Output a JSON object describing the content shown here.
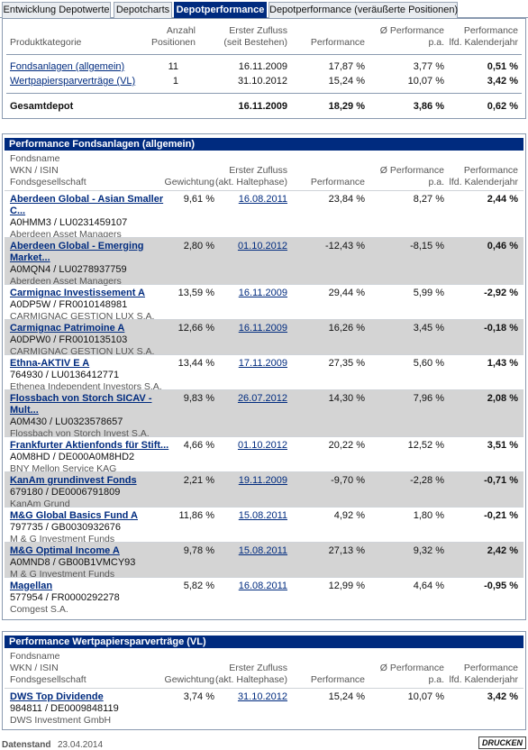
{
  "tabs": [
    {
      "label": "Entwicklung Depotwerte",
      "active": false
    },
    {
      "label": "Depotcharts",
      "active": false
    },
    {
      "label": "Depotperformance",
      "active": true
    },
    {
      "label": "Depotperformance (veräußerte Positionen)",
      "active": false
    }
  ],
  "summary": {
    "headers": {
      "category": "Produktkategorie",
      "count_1": "Anzahl",
      "count_2": "Positionen",
      "first_1": "Erster Zufluss",
      "first_2": "(seit Bestehen)",
      "perf": "Performance",
      "pa_1": "Ø Performance",
      "pa_2": "p.a.",
      "year_1": "Performance",
      "year_2": "lfd. Kalenderjahr"
    },
    "rows": [
      {
        "category": "Fondsanlagen (allgemein)",
        "count": "11",
        "first": "16.11.2009",
        "perf": "17,87 %",
        "pa": "3,77 %",
        "year": "0,51 %"
      },
      {
        "category": "Wertpapiersparverträge (VL)",
        "count": "1",
        "first": "31.10.2012",
        "perf": "15,24 %",
        "pa": "10,07 %",
        "year": "3,42 %"
      }
    ],
    "total": {
      "category": "Gesamtdepot",
      "first": "16.11.2009",
      "perf": "18,29 %",
      "pa": "3,86 %",
      "year": "0,62 %"
    }
  },
  "funds_section": {
    "title": "Performance Fondsanlagen (allgemein)",
    "headers": {
      "name_1": "Fondsname",
      "name_2": "WKN / ISIN",
      "name_3": "Fondsgesellschaft",
      "weight": "Gewichtung",
      "first_1": "Erster Zufluss",
      "first_2": "(akt. Haltephase)",
      "perf": "Performance",
      "pa_1": "Ø Performance",
      "pa_2": "p.a.",
      "year_1": "Performance",
      "year_2": "lfd. Kalenderjahr"
    },
    "rows": [
      {
        "name": "Aberdeen Global - Asian Smaller",
        "name2": "C...",
        "ids": "A0HMM3 /  LU0231459107",
        "company": "Aberdeen Asset Managers",
        "weight": "9,61 %",
        "first": "16.08.2011",
        "perf": "23,84 %",
        "pa": "8,27 %",
        "year": "2,44 %"
      },
      {
        "name": "Aberdeen Global - Emerging",
        "name2": "Market...",
        "ids": "A0MQN4 /  LU0278937759",
        "company": "Aberdeen Asset Managers",
        "weight": "2,80 %",
        "first": "01.10.2012",
        "perf": "-12,43 %",
        "pa": "-8,15 %",
        "year": "0,46 %"
      },
      {
        "name": "Carmignac Investissement A",
        "name2": "",
        "ids": "A0DP5W /  FR0010148981",
        "company": "CARMIGNAC GESTION LUX S.A.",
        "weight": "13,59 %",
        "first": "16.11.2009",
        "perf": "29,44 %",
        "pa": "5,99 %",
        "year": "-2,92 %"
      },
      {
        "name": "Carmignac Patrimoine A",
        "name2": "",
        "ids": "A0DPW0 /  FR0010135103",
        "company": "CARMIGNAC GESTION LUX S.A.",
        "weight": "12,66 %",
        "first": "16.11.2009",
        "perf": "16,26 %",
        "pa": "3,45 %",
        "year": "-0,18 %"
      },
      {
        "name": "Ethna-AKTIV E A",
        "name2": "",
        "ids": "764930 /  LU0136412771",
        "company": "Ethenea Independent Investors S.A.",
        "weight": "13,44 %",
        "first": "17.11.2009",
        "perf": "27,35 %",
        "pa": "5,60 %",
        "year": "1,43 %"
      },
      {
        "name": "Flossbach von Storch SICAV -",
        "name2": "Mult...",
        "ids": "A0M430 /  LU0323578657",
        "company": "Flossbach von Storch Invest S.A.",
        "weight": "9,83 %",
        "first": "26.07.2012",
        "perf": "14,30 %",
        "pa": "7,96 %",
        "year": "2,08 %"
      },
      {
        "name": "Frankfurter Aktienfonds für Stift...",
        "name2": "",
        "ids": "A0M8HD /  DE000A0M8HD2",
        "company": "BNY Mellon Service KAG",
        "weight": "4,66 %",
        "first": "01.10.2012",
        "perf": "20,22 %",
        "pa": "12,52 %",
        "year": "3,51 %"
      },
      {
        "name": "KanAm grundinvest Fonds",
        "name2": "",
        "ids": "679180 /  DE0006791809",
        "company": "KanAm Grund",
        "weight": "2,21 %",
        "first": "19.11.2009",
        "perf": "-9,70 %",
        "pa": "-2,28 %",
        "year": "-0,71 %"
      },
      {
        "name": "M&G Global Basics Fund A",
        "name2": "",
        "ids": "797735 /  GB0030932676",
        "company": "M & G Investment Funds",
        "weight": "11,86 %",
        "first": "15.08.2011",
        "perf": "4,92 %",
        "pa": "1,80 %",
        "year": "-0,21 %"
      },
      {
        "name": "M&G Optimal Income A",
        "name2": "",
        "ids": "A0MND8 /  GB00B1VMCY93",
        "company": "M & G Investment Funds",
        "weight": "9,78 %",
        "first": "15.08.2011",
        "perf": "27,13 %",
        "pa": "9,32 %",
        "year": "2,42 %"
      },
      {
        "name": "Magellan",
        "name2": "",
        "ids": "577954 /  FR0000292278",
        "company": "Comgest S.A.",
        "weight": "5,82 %",
        "first": "16.08.2011",
        "perf": "12,99 %",
        "pa": "4,64 %",
        "year": "-0,95 %"
      }
    ]
  },
  "vl_section": {
    "title": "Performance Wertpapiersparverträge (VL)",
    "rows": [
      {
        "name": "DWS Top Dividende",
        "name2": "",
        "ids": "984811 /  DE0009848119",
        "company": "DWS Investment GmbH",
        "weight": "3,74 %",
        "first": "31.10.2012",
        "perf": "15,24 %",
        "pa": "10,07 %",
        "year": "3,42 %"
      }
    ]
  },
  "footer": {
    "label": "Datenstand",
    "date": "23.04.2014",
    "print_label": "DRUCKEN"
  }
}
